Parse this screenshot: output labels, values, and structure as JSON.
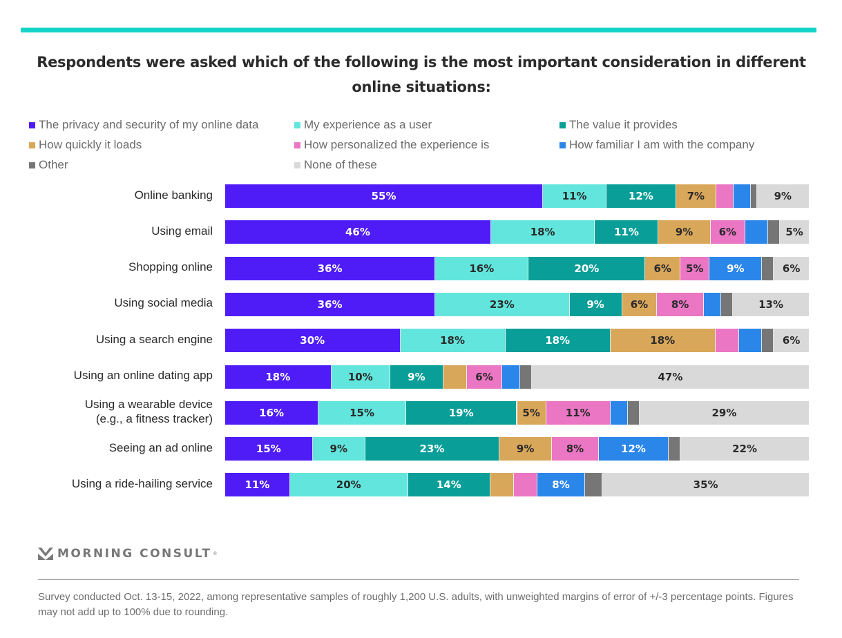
{
  "chart_data": {
    "type": "bar",
    "orientation": "horizontal",
    "stacked": true,
    "title": "Respondents were asked which of the following is the most important consideration in different online situations:",
    "xlabel": "",
    "ylabel": "",
    "xlim": [
      0,
      100
    ],
    "unit": "%",
    "grid": false,
    "legend_position": "top",
    "categories": [
      "Online banking",
      "Using email",
      "Shopping online",
      "Using social media",
      "Using a search engine",
      "Using an online dating app",
      "Using a wearable device (e.g., a fitness tracker)",
      "Seeing an ad online",
      "Using a ride-hailing service"
    ],
    "category_lines": [
      [
        "Online banking"
      ],
      [
        "Using email"
      ],
      [
        "Shopping online"
      ],
      [
        "Using social media"
      ],
      [
        "Using a search engine"
      ],
      [
        "Using an online dating app"
      ],
      [
        "Using a wearable device",
        "(e.g., a fitness tracker)"
      ],
      [
        "Seeing an ad online"
      ],
      [
        "Using a ride-hailing service"
      ]
    ],
    "series": [
      {
        "name": "The privacy and security of my online data",
        "color": "#4f1cf7",
        "label_color": "#ffffff",
        "values": [
          55,
          46,
          36,
          36,
          30,
          18,
          16,
          15,
          11
        ],
        "labeled": [
          true,
          true,
          true,
          true,
          true,
          true,
          true,
          true,
          true
        ]
      },
      {
        "name": "My experience as a user",
        "color": "#62e5dc",
        "label_color": "#2a2a2a",
        "values": [
          11,
          18,
          16,
          23,
          18,
          10,
          15,
          9,
          20
        ],
        "labeled": [
          true,
          true,
          true,
          true,
          true,
          true,
          true,
          true,
          true
        ]
      },
      {
        "name": "The value it provides",
        "color": "#0a9e98",
        "label_color": "#ffffff",
        "values": [
          12,
          11,
          20,
          9,
          18,
          9,
          19,
          23,
          14
        ],
        "labeled": [
          true,
          true,
          true,
          true,
          true,
          true,
          true,
          true,
          true
        ]
      },
      {
        "name": "How quickly it loads",
        "color": "#d9a75a",
        "label_color": "#2a2a2a",
        "values": [
          7,
          9,
          6,
          6,
          18,
          4,
          5,
          9,
          4
        ],
        "labeled": [
          true,
          true,
          true,
          true,
          true,
          false,
          true,
          true,
          false
        ]
      },
      {
        "name": "How personalized the experience is",
        "color": "#ea76c4",
        "label_color": "#2a2a2a",
        "values": [
          3,
          6,
          5,
          8,
          4,
          6,
          11,
          8,
          4
        ],
        "labeled": [
          false,
          true,
          true,
          true,
          false,
          true,
          true,
          true,
          false
        ]
      },
      {
        "name": "How familiar I am with the company",
        "color": "#2b86ea",
        "label_color": "#ffffff",
        "values": [
          3,
          4,
          9,
          3,
          4,
          3,
          3,
          12,
          8
        ],
        "labeled": [
          false,
          false,
          true,
          false,
          false,
          false,
          false,
          true,
          true
        ]
      },
      {
        "name": "Other",
        "color": "#767676",
        "label_color": "#ffffff",
        "values": [
          1,
          2,
          2,
          2,
          2,
          2,
          2,
          2,
          3
        ],
        "labeled": [
          false,
          false,
          false,
          false,
          false,
          false,
          false,
          false,
          false
        ]
      },
      {
        "name": "None of these",
        "color": "#d9d9d9",
        "label_color": "#2a2a2a",
        "values": [
          9,
          5,
          6,
          13,
          6,
          47,
          29,
          22,
          35
        ],
        "labeled": [
          true,
          true,
          true,
          true,
          true,
          true,
          true,
          true,
          true
        ]
      }
    ]
  },
  "header": {
    "accent_color": "#12d3c6"
  },
  "brand": {
    "name": "MORNING CONSULT",
    "mark": "®"
  },
  "footnote": "Survey conducted Oct. 13-15, 2022, among representative samples of roughly 1,200 U.S. adults, with unweighted margins of error of +/-3 percentage points. Figures may not add up to 100% due to rounding."
}
